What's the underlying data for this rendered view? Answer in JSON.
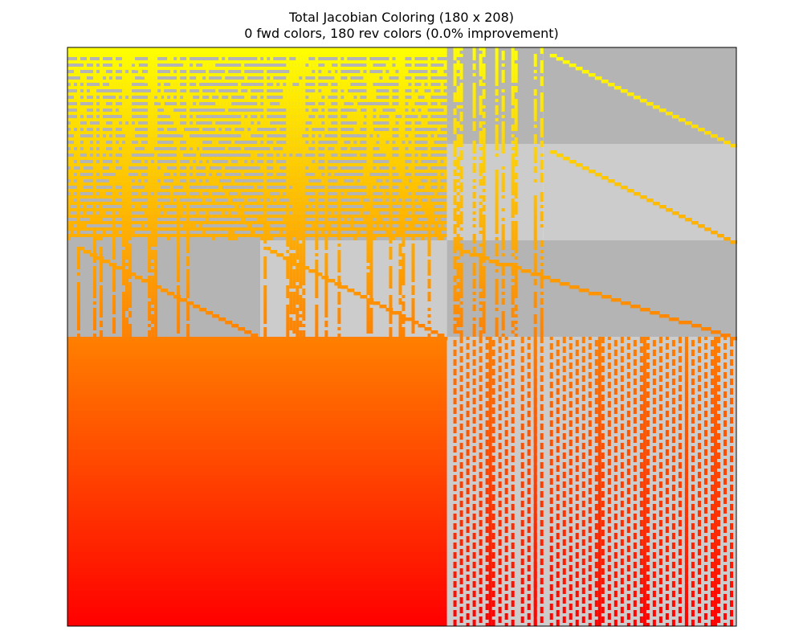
{
  "chart_data": {
    "type": "heatmap",
    "title": "Total Jacobian Coloring (180 x 208)",
    "subtitle": "0 fwd colors, 180 rev colors (0.0% improvement)",
    "rows": 180,
    "cols": 208,
    "fwd_colors": 0,
    "rev_colors": 180,
    "improvement_pct": 0.0,
    "colormap": {
      "start": "#ffff00",
      "middle": "#ff8000",
      "end": "#ff0000"
    },
    "block_colors": {
      "dark": "#b4b4b4",
      "light": "#cccccc",
      "frame": "#000000"
    },
    "axes": "off",
    "blocks": [
      {
        "row_start": 0,
        "row_end": 60,
        "col_start": 0,
        "col_end": 118,
        "shade": "dark"
      },
      {
        "row_start": 0,
        "row_end": 30,
        "col_start": 118,
        "col_end": 148,
        "shade": "dark"
      },
      {
        "row_start": 30,
        "row_end": 60,
        "col_start": 118,
        "col_end": 148,
        "shade": "light"
      },
      {
        "row_start": 0,
        "row_end": 30,
        "col_start": 148,
        "col_end": 208,
        "shade": "dark"
      },
      {
        "row_start": 30,
        "row_end": 60,
        "col_start": 148,
        "col_end": 208,
        "shade": "light"
      },
      {
        "row_start": 60,
        "row_end": 90,
        "col_start": 0,
        "col_end": 60,
        "shade": "dark"
      },
      {
        "row_start": 60,
        "row_end": 90,
        "col_start": 60,
        "col_end": 118,
        "shade": "light"
      },
      {
        "row_start": 60,
        "row_end": 90,
        "col_start": 118,
        "col_end": 208,
        "shade": "dark"
      },
      {
        "row_start": 90,
        "row_end": 180,
        "col_start": 118,
        "col_end": 208,
        "shade": "light"
      }
    ],
    "dense_block": {
      "row_start": 90,
      "row_end": 180,
      "col_start": 0,
      "col_end": 118
    },
    "dense_columns_lower_right": [
      120,
      122,
      124,
      126,
      128,
      130,
      132,
      134,
      136,
      138,
      141,
      143,
      145,
      147,
      150,
      152,
      154,
      156,
      158,
      160,
      162,
      164,
      166,
      168,
      170,
      172,
      174,
      176,
      178,
      180,
      182,
      184,
      186,
      188,
      190,
      192,
      194,
      196,
      198,
      200,
      202,
      204,
      206
    ],
    "solid_columns_lower_right": [
      131,
      145,
      165,
      179,
      192,
      201
    ],
    "dense_columns_upper": [
      3,
      8,
      10,
      14,
      17,
      18,
      19,
      25,
      26,
      27,
      34,
      37,
      61,
      68,
      69,
      70,
      71,
      72,
      73,
      77,
      80,
      84,
      93,
      94,
      100,
      103,
      104,
      107,
      112,
      120,
      121,
      122,
      126,
      128,
      129,
      133,
      135,
      138,
      139,
      145,
      147
    ],
    "diagonals": [
      {
        "row_start": 2,
        "row_end": 30,
        "col_start": 150,
        "col_end": 207
      },
      {
        "row_start": 32,
        "row_end": 60,
        "col_start": 150,
        "col_end": 207
      },
      {
        "row_start": 62,
        "row_end": 90,
        "col_start": 120,
        "col_end": 207
      },
      {
        "row_start": 62,
        "row_end": 90,
        "col_start": 4,
        "col_end": 59
      },
      {
        "row_start": 62,
        "row_end": 90,
        "col_start": 62,
        "col_end": 117
      },
      {
        "row_start": 4,
        "row_end": 58,
        "col_start": 20,
        "col_end": 58
      },
      {
        "row_start": 4,
        "row_end": 58,
        "col_start": 80,
        "col_end": 116
      }
    ]
  }
}
